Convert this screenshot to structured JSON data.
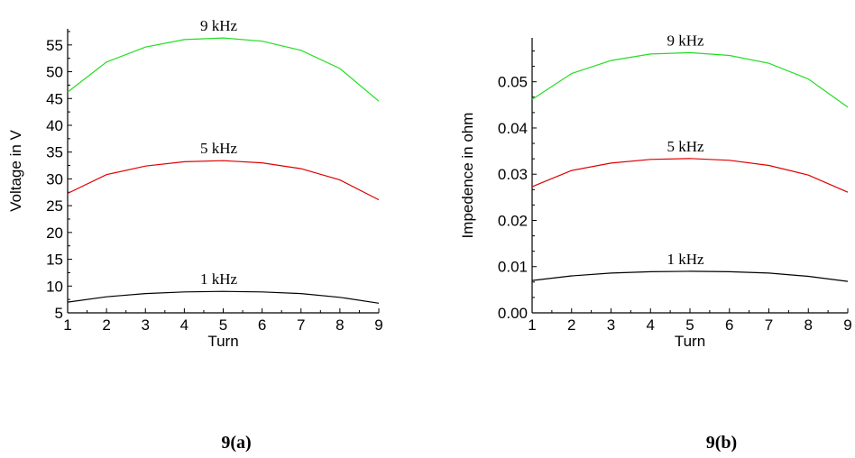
{
  "chart_data": [
    {
      "type": "line",
      "caption": "9(a)",
      "xlabel": "Turn",
      "ylabel": "Voltage in V",
      "xlim": [
        1,
        9
      ],
      "ylim": [
        5,
        58
      ],
      "xticks": [
        "1",
        "2",
        "3",
        "4",
        "5",
        "6",
        "7",
        "8",
        "9"
      ],
      "yticks": [
        "5",
        "10",
        "15",
        "20",
        "25",
        "30",
        "35",
        "40",
        "45",
        "50",
        "55"
      ],
      "grid": false,
      "x": [
        1,
        2,
        3,
        4,
        5,
        6,
        7,
        8,
        9
      ],
      "series": [
        {
          "name": "9 kHz",
          "color": "#22dd22",
          "values": [
            46.2,
            51.8,
            54.6,
            56.0,
            56.3,
            55.7,
            54.0,
            50.6,
            44.5
          ]
        },
        {
          "name": "5 kHz",
          "color": "#dd0000",
          "values": [
            27.3,
            30.8,
            32.4,
            33.2,
            33.4,
            33.0,
            31.9,
            29.8,
            26.1
          ]
        },
        {
          "name": "1 kHz",
          "color": "#000000",
          "values": [
            7.0,
            8.0,
            8.6,
            8.9,
            9.0,
            8.9,
            8.6,
            7.9,
            6.8
          ]
        }
      ]
    },
    {
      "type": "line",
      "caption": "9(b)",
      "xlabel": "Turn",
      "ylabel": "Impedence in ohm",
      "xlim": [
        1,
        9
      ],
      "ylim": [
        0,
        0.0595
      ],
      "xticks": [
        "1",
        "2",
        "3",
        "4",
        "5",
        "6",
        "7",
        "8",
        "9"
      ],
      "yticks": [
        "0.00",
        "0.01",
        "0.02",
        "0.03",
        "0.04",
        "0.05"
      ],
      "grid": false,
      "x": [
        1,
        2,
        3,
        4,
        5,
        6,
        7,
        8,
        9
      ],
      "series": [
        {
          "name": "9 kHz",
          "color": "#22dd22",
          "values": [
            0.0462,
            0.0518,
            0.0546,
            0.056,
            0.0563,
            0.0557,
            0.054,
            0.0506,
            0.0445
          ]
        },
        {
          "name": "5 kHz",
          "color": "#dd0000",
          "values": [
            0.0273,
            0.0308,
            0.0324,
            0.0332,
            0.0334,
            0.033,
            0.0319,
            0.0298,
            0.0261
          ]
        },
        {
          "name": "1 kHz",
          "color": "#000000",
          "values": [
            0.007,
            0.008,
            0.0086,
            0.0089,
            0.009,
            0.0089,
            0.0086,
            0.0079,
            0.0068
          ]
        }
      ]
    }
  ]
}
